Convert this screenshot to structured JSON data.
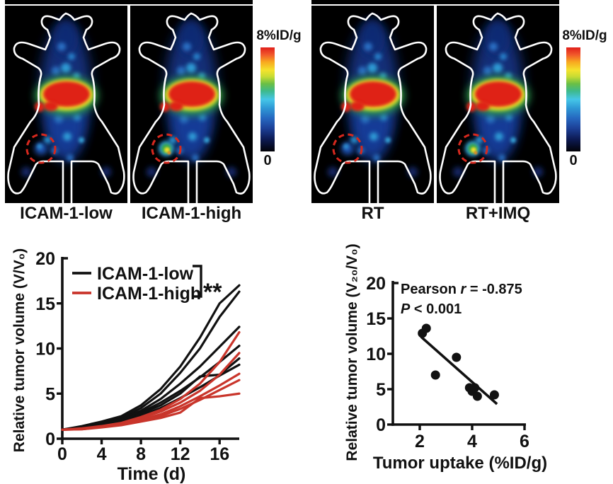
{
  "pet": {
    "groups": [
      {
        "panels": [
          {
            "label": "ICAM-1-low",
            "tumor_signal": "low"
          },
          {
            "label": "ICAM-1-high",
            "tumor_signal": "high"
          }
        ],
        "colorbar": {
          "max_label": "8%ID/g",
          "min_label": "0"
        }
      },
      {
        "panels": [
          {
            "label": "RT",
            "tumor_signal": "low"
          },
          {
            "label": "RT+IMQ",
            "tumor_signal": "high"
          }
        ],
        "colorbar": {
          "max_label": "8%ID/g",
          "min_label": "0"
        }
      }
    ],
    "tumor_marker": "red-dashed-circle"
  },
  "colors": {
    "black_series": "#111111",
    "red_series": "#c9352b",
    "axis": "#111111",
    "dashed_circle": "#d5281e"
  },
  "chart_data": [
    {
      "type": "line",
      "title": "",
      "xlabel": "Time (d)",
      "ylabel": "Relative tumor volume (V/V₀)",
      "xlim": [
        0,
        18
      ],
      "ylim": [
        0,
        20
      ],
      "xticks": [
        0,
        4,
        8,
        12,
        16
      ],
      "yticks": [
        0,
        5,
        10,
        15,
        20
      ],
      "grid": false,
      "legend_position": "top-left-inside",
      "significance": "**",
      "x": [
        0,
        2,
        4,
        6,
        8,
        10,
        12,
        14,
        16,
        18
      ],
      "legend": [
        {
          "label": "ICAM-1-low",
          "color": "#111111"
        },
        {
          "label": "ICAM-1-high",
          "color": "#c9352b"
        }
      ],
      "series": [
        {
          "name": "ICAM-1-low",
          "color": "#111111",
          "values": [
            1.0,
            1.4,
            1.9,
            2.5,
            3.7,
            5.5,
            8.0,
            11.2,
            15.0,
            17.0
          ]
        },
        {
          "name": "ICAM-1-low",
          "color": "#111111",
          "values": [
            1.0,
            1.35,
            1.8,
            2.3,
            3.4,
            5.0,
            7.3,
            10.0,
            13.5,
            16.3
          ]
        },
        {
          "name": "ICAM-1-low",
          "color": "#111111",
          "values": [
            1.0,
            1.3,
            1.7,
            2.2,
            3.1,
            4.4,
            6.1,
            8.0,
            10.2,
            12.4
          ]
        },
        {
          "name": "ICAM-1-low",
          "color": "#111111",
          "values": [
            1.0,
            1.3,
            1.65,
            2.1,
            2.9,
            4.0,
            5.3,
            6.8,
            8.5,
            10.3
          ]
        },
        {
          "name": "ICAM-1-low",
          "color": "#111111",
          "values": [
            1.0,
            1.25,
            1.6,
            2.0,
            2.8,
            3.7,
            5.0,
            6.9,
            7.1,
            8.9
          ]
        },
        {
          "name": "ICAM-1-low",
          "color": "#111111",
          "values": [
            1.0,
            1.2,
            1.5,
            1.9,
            2.6,
            3.4,
            4.5,
            5.7,
            7.0,
            8.2
          ]
        },
        {
          "name": "ICAM-1-high",
          "color": "#c9352b",
          "values": [
            1.0,
            1.15,
            1.4,
            1.75,
            2.4,
            3.2,
            4.4,
            6.1,
            8.5,
            11.8
          ]
        },
        {
          "name": "ICAM-1-high",
          "color": "#c9352b",
          "values": [
            1.0,
            1.1,
            1.35,
            1.7,
            2.3,
            3.0,
            4.0,
            5.3,
            7.1,
            9.5
          ]
        },
        {
          "name": "ICAM-1-high",
          "color": "#c9352b",
          "values": [
            1.0,
            1.1,
            1.3,
            1.6,
            2.1,
            2.7,
            3.6,
            4.7,
            5.9,
            7.2
          ]
        },
        {
          "name": "ICAM-1-high",
          "color": "#c9352b",
          "values": [
            1.0,
            1.05,
            1.3,
            1.55,
            2.0,
            2.5,
            3.3,
            4.3,
            5.4,
            6.5
          ]
        },
        {
          "name": "ICAM-1-high",
          "color": "#c9352b",
          "values": [
            1.0,
            1.05,
            1.25,
            1.5,
            1.9,
            2.3,
            2.9,
            4.5,
            4.7,
            5.0
          ]
        }
      ]
    },
    {
      "type": "scatter",
      "title": "",
      "xlabel": "Tumor uptake (%ID/g)",
      "ylabel": "Relative tumor volume (V₂₀/V₀)",
      "xlim": [
        1,
        6.1
      ],
      "ylim": [
        0,
        20
      ],
      "xticks": [
        2,
        4,
        6
      ],
      "yticks": [
        0,
        5,
        10,
        15,
        20
      ],
      "grid": false,
      "points": [
        [
          2.1,
          12.9
        ],
        [
          2.25,
          13.6
        ],
        [
          2.6,
          7.0
        ],
        [
          3.4,
          9.5
        ],
        [
          3.9,
          5.2
        ],
        [
          4.0,
          4.7
        ],
        [
          4.1,
          5.2
        ],
        [
          4.2,
          4.0
        ],
        [
          4.85,
          4.2
        ]
      ],
      "fit_line": {
        "x1": 2.05,
        "y1": 12.4,
        "x2": 4.95,
        "y2": 2.9
      },
      "annotation": [
        [
          {
            "t": "Pearson "
          },
          {
            "t": "r",
            "italic": true
          },
          {
            "t": " = -0.875"
          }
        ],
        [
          {
            "t": "P",
            "italic": true
          },
          {
            "t": " < 0.001"
          }
        ]
      ]
    }
  ]
}
